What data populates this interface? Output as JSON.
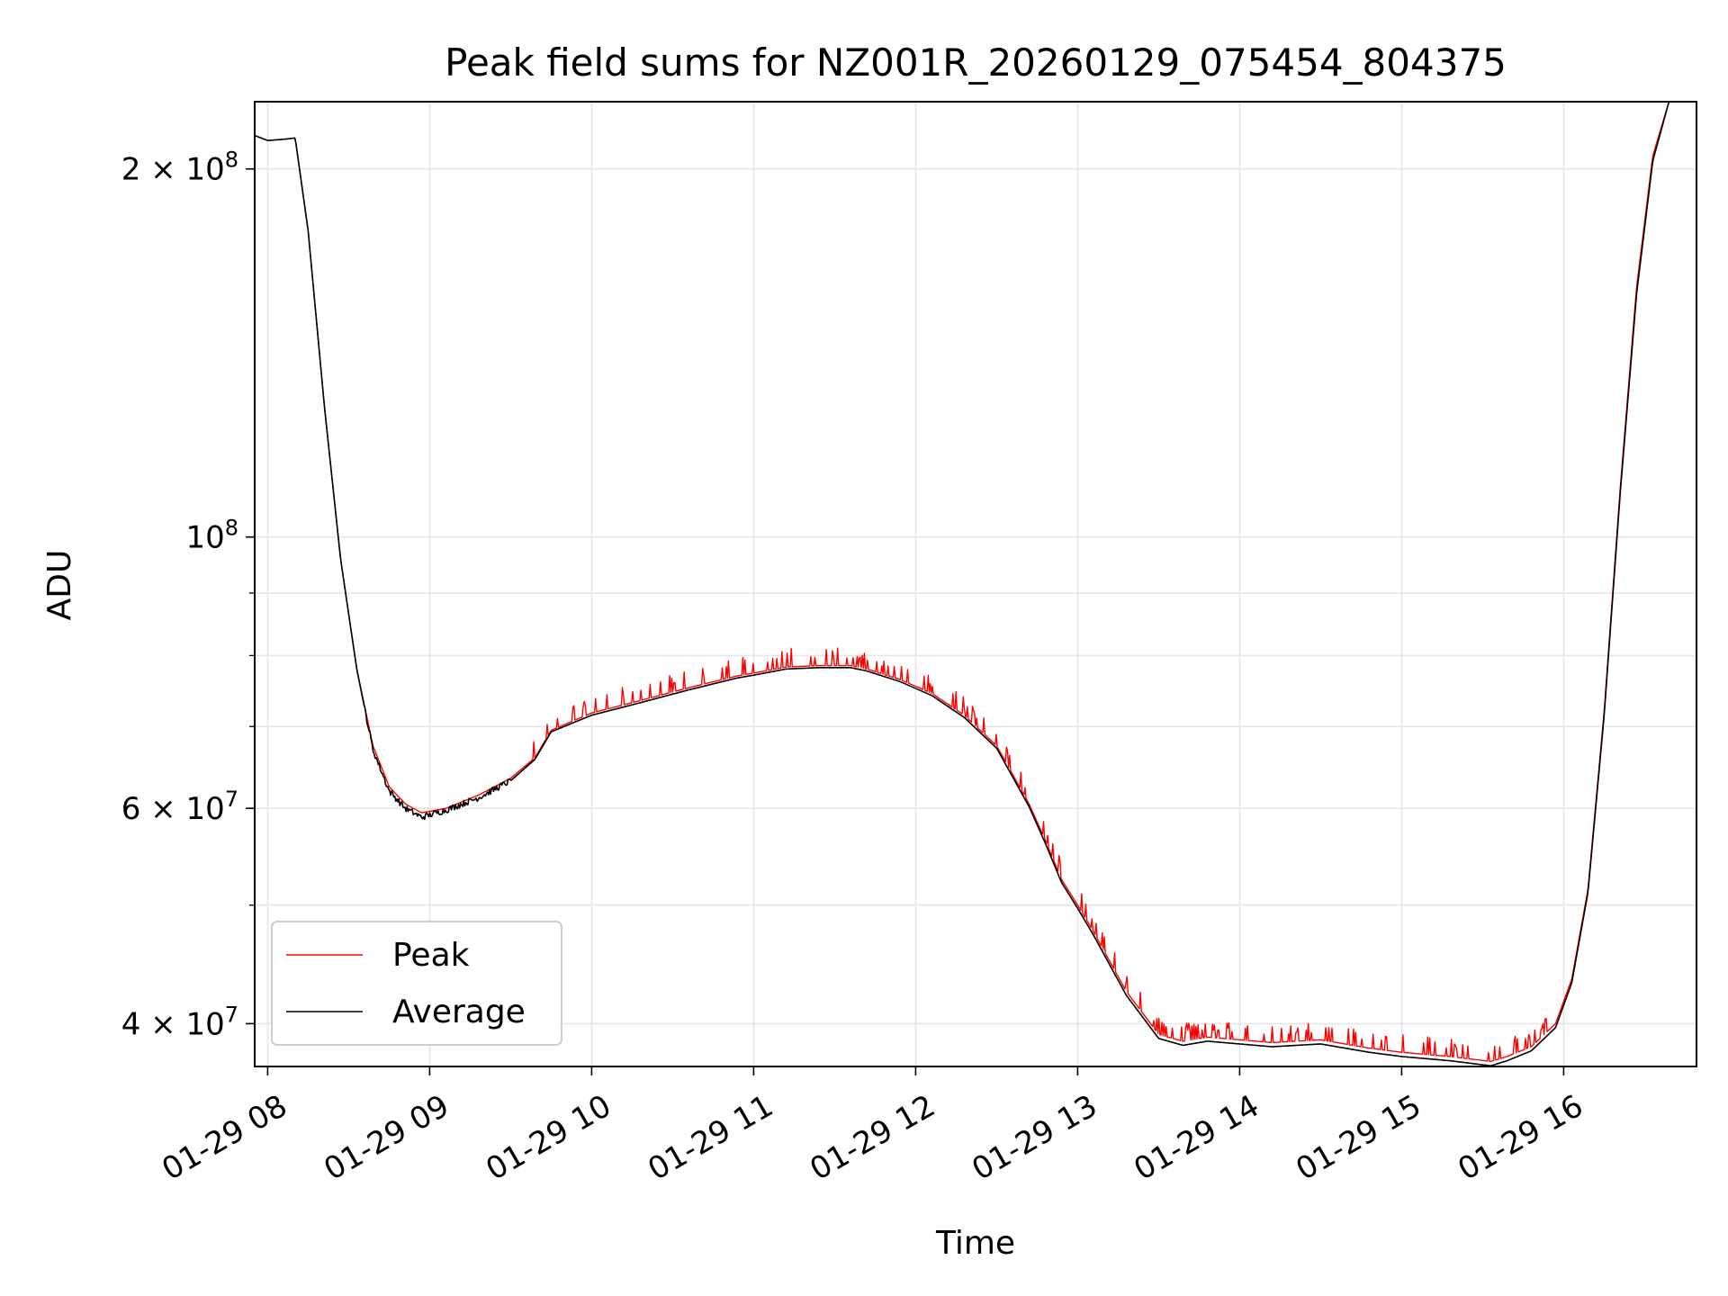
{
  "chart_data": {
    "type": "line",
    "title": "Peak field sums for NZ001R_20260129_075454_804375",
    "xlabel": "Time",
    "ylabel": "ADU",
    "x_unit": "hours (01-29)",
    "xlim": [
      7.92,
      16.82
    ],
    "ylim": [
      36900000,
      227000000
    ],
    "yscale": "log",
    "grid": true,
    "legend_position": "lower-left",
    "x_ticks": [
      {
        "value": 8,
        "label": "01-29 08"
      },
      {
        "value": 9,
        "label": "01-29 09"
      },
      {
        "value": 10,
        "label": "01-29 10"
      },
      {
        "value": 11,
        "label": "01-29 11"
      },
      {
        "value": 12,
        "label": "01-29 12"
      },
      {
        "value": 13,
        "label": "01-29 13"
      },
      {
        "value": 14,
        "label": "01-29 14"
      },
      {
        "value": 15,
        "label": "01-29 15"
      },
      {
        "value": 16,
        "label": "01-29 16"
      }
    ],
    "y_major_ticks": [
      {
        "value": 40000000,
        "mantissa": "4",
        "exponent": "7"
      },
      {
        "value": 60000000,
        "mantissa": "6",
        "exponent": "7"
      },
      {
        "value": 100000000,
        "mantissa": "",
        "exponent": "8"
      },
      {
        "value": 200000000,
        "mantissa": "2",
        "exponent": "8"
      }
    ],
    "y_minor_ticks": [
      50000000,
      70000000,
      80000000,
      90000000
    ],
    "series": [
      {
        "name": "Peak",
        "color": "#ff0000",
        "spike_percent": 3.5,
        "x": [
          7.92,
          8.0,
          8.1,
          8.17,
          8.25,
          8.35,
          8.45,
          8.55,
          8.65,
          8.75,
          8.85,
          8.95,
          9.1,
          9.3,
          9.5,
          9.65,
          9.75,
          10.0,
          10.3,
          10.6,
          10.9,
          11.0,
          11.2,
          11.4,
          11.6,
          11.7,
          11.9,
          12.1,
          12.3,
          12.5,
          12.7,
          12.8,
          12.9,
          13.0,
          13.1,
          13.3,
          13.5,
          13.65,
          13.8,
          14.0,
          14.2,
          14.5,
          14.8,
          15.0,
          15.3,
          15.55,
          15.65,
          15.8,
          15.95,
          16.05,
          16.15,
          16.25,
          16.35,
          16.45,
          16.55,
          16.65,
          16.82
        ],
        "y": [
          213000000,
          211000000,
          211500000,
          212000000,
          178000000,
          128000000,
          96000000,
          78000000,
          67500000,
          62500000,
          60500000,
          59500000,
          60000000,
          61500000,
          63500000,
          66000000,
          69500000,
          71800000,
          73500000,
          75300000,
          77000000,
          77400000,
          78300000,
          78500000,
          78500000,
          78000000,
          76500000,
          74500000,
          71500000,
          67500000,
          60500000,
          56500000,
          52500000,
          50000000,
          47500000,
          42500000,
          39200000,
          38700000,
          39000000,
          38800000,
          38600000,
          38800000,
          38200000,
          37900000,
          37600000,
          37250000,
          37600000,
          38300000,
          40000000,
          43500000,
          51500000,
          72000000,
          110000000,
          160000000,
          205000000,
          227000000,
          227000000
        ]
      },
      {
        "name": "Average",
        "color": "#000000",
        "x": [
          7.92,
          8.0,
          8.1,
          8.17,
          8.25,
          8.35,
          8.45,
          8.55,
          8.65,
          8.75,
          8.85,
          8.95,
          9.1,
          9.3,
          9.5,
          9.65,
          9.75,
          10.0,
          10.3,
          10.6,
          10.9,
          11.0,
          11.2,
          11.4,
          11.6,
          11.7,
          11.9,
          12.1,
          12.3,
          12.5,
          12.7,
          12.8,
          12.9,
          13.0,
          13.1,
          13.3,
          13.5,
          13.65,
          13.8,
          14.0,
          14.2,
          14.5,
          14.8,
          15.0,
          15.3,
          15.55,
          15.65,
          15.8,
          15.95,
          16.05,
          16.15,
          16.25,
          16.35,
          16.45,
          16.55,
          16.65,
          16.82
        ],
        "y": [
          213000000,
          211000000,
          211500000,
          212000000,
          178000000,
          128000000,
          96000000,
          78000000,
          67000000,
          62000000,
          60000000,
          59000000,
          59800000,
          61200000,
          63200000,
          65800000,
          69300000,
          71500000,
          73200000,
          75000000,
          76700000,
          77100000,
          78000000,
          78200000,
          78200000,
          77700000,
          76200000,
          74200000,
          71200000,
          67200000,
          60200000,
          56200000,
          52200000,
          49700000,
          47200000,
          42200000,
          38900000,
          38400000,
          38700000,
          38500000,
          38300000,
          38500000,
          37900000,
          37600000,
          37300000,
          36950000,
          37300000,
          38000000,
          39700000,
          43200000,
          51200000,
          71500000,
          109000000,
          158000000,
          203000000,
          227000000,
          227000000
        ]
      }
    ]
  }
}
